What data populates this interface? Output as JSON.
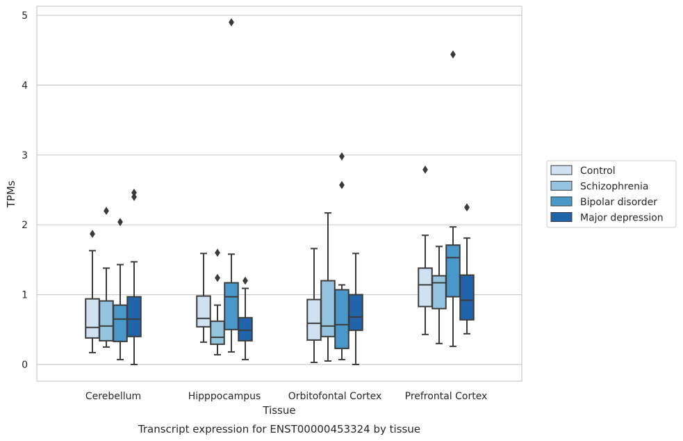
{
  "chart_data": {
    "type": "box",
    "title": "",
    "caption": "Transcript expression for ENST00000453324 by tissue",
    "xlabel": "Tissue",
    "ylabel": "TPMs",
    "ylim": [
      -0.24,
      5.13
    ],
    "yticks": [
      "0",
      "1",
      "2",
      "3",
      "4",
      "5"
    ],
    "grid": "horizontal",
    "legend_position": "right",
    "categories": [
      "Cerebellum",
      "Hipppocampus",
      "Orbitofontal Cortex",
      "Prefrontal Cortex"
    ],
    "series": [
      {
        "name": "Control",
        "color": "#d0e1f2",
        "boxes": [
          {
            "whisker_low": 0.17,
            "q1": 0.38,
            "median": 0.53,
            "q3": 0.94,
            "whisker_high": 1.63,
            "outliers": [
              1.87
            ]
          },
          {
            "whisker_low": 0.32,
            "q1": 0.54,
            "median": 0.66,
            "q3": 0.98,
            "whisker_high": 1.59,
            "outliers": []
          },
          {
            "whisker_low": 0.03,
            "q1": 0.35,
            "median": 0.59,
            "q3": 0.93,
            "whisker_high": 1.66,
            "outliers": []
          },
          {
            "whisker_low": 0.43,
            "q1": 0.83,
            "median": 1.14,
            "q3": 1.38,
            "whisker_high": 1.85,
            "outliers": [
              2.79
            ]
          }
        ]
      },
      {
        "name": "Schizophrenia",
        "color": "#94c4df",
        "boxes": [
          {
            "whisker_low": 0.25,
            "q1": 0.34,
            "median": 0.55,
            "q3": 0.91,
            "whisker_high": 1.38,
            "outliers": [
              2.2
            ]
          },
          {
            "whisker_low": 0.14,
            "q1": 0.29,
            "median": 0.39,
            "q3": 0.62,
            "whisker_high": 0.85,
            "outliers": [
              1.24,
              1.6
            ]
          },
          {
            "whisker_low": 0.05,
            "q1": 0.4,
            "median": 0.55,
            "q3": 1.2,
            "whisker_high": 2.17,
            "outliers": []
          },
          {
            "whisker_low": 0.3,
            "q1": 0.8,
            "median": 1.17,
            "q3": 1.27,
            "whisker_high": 1.69,
            "outliers": []
          }
        ]
      },
      {
        "name": "Bipolar disorder",
        "color": "#4a98c9",
        "boxes": [
          {
            "whisker_low": 0.07,
            "q1": 0.33,
            "median": 0.65,
            "q3": 0.85,
            "whisker_high": 1.43,
            "outliers": [
              2.04
            ]
          },
          {
            "whisker_low": 0.18,
            "q1": 0.5,
            "median": 0.97,
            "q3": 1.17,
            "whisker_high": 1.58,
            "outliers": [
              4.9
            ]
          },
          {
            "whisker_low": 0.07,
            "q1": 0.23,
            "median": 0.57,
            "q3": 1.07,
            "whisker_high": 1.14,
            "outliers": [
              2.57,
              2.98
            ]
          },
          {
            "whisker_low": 0.26,
            "q1": 0.97,
            "median": 1.53,
            "q3": 1.71,
            "whisker_high": 1.97,
            "outliers": [
              4.44
            ]
          }
        ]
      },
      {
        "name": "Major depression",
        "color": "#2264a9",
        "boxes": [
          {
            "whisker_low": 0.0,
            "q1": 0.4,
            "median": 0.65,
            "q3": 0.97,
            "whisker_high": 1.47,
            "outliers": [
              2.4,
              2.46
            ]
          },
          {
            "whisker_low": 0.07,
            "q1": 0.34,
            "median": 0.49,
            "q3": 0.67,
            "whisker_high": 1.09,
            "outliers": [
              1.2
            ]
          },
          {
            "whisker_low": 0.0,
            "q1": 0.49,
            "median": 0.68,
            "q3": 1.0,
            "whisker_high": 1.59,
            "outliers": []
          },
          {
            "whisker_low": 0.44,
            "q1": 0.64,
            "median": 0.92,
            "q3": 1.28,
            "whisker_high": 1.81,
            "outliers": [
              2.25
            ]
          }
        ]
      }
    ]
  }
}
